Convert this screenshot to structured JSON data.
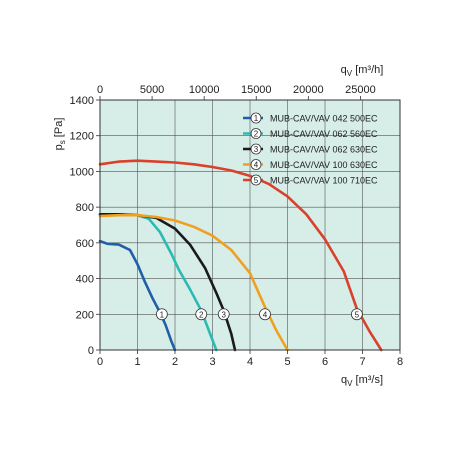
{
  "chart_data": {
    "type": "line",
    "background_color": "#d6ede8",
    "grid": true,
    "legend_position": "top-right",
    "x_primary": {
      "label": "q",
      "label_sub": "V",
      "label_unit": "[m³/s]",
      "range": [
        0,
        8
      ],
      "ticks": [
        "0",
        "1",
        "2",
        "3",
        "4",
        "5",
        "6",
        "7",
        "8"
      ]
    },
    "x_secondary": {
      "label": "q",
      "label_sub": "V",
      "label_unit": "[m³/h]",
      "range": [
        0,
        28800
      ],
      "ticks": [
        "0",
        "5000",
        "10000",
        "15000",
        "20000",
        "25000"
      ],
      "tick_values": [
        0,
        5000,
        10000,
        15000,
        20000,
        25000
      ]
    },
    "y": {
      "label": "p",
      "label_sub": "s",
      "label_unit": "[Pa]",
      "range": [
        0,
        1400
      ],
      "ticks": [
        "0",
        "200",
        "400",
        "600",
        "800",
        "1000",
        "1200",
        "1400"
      ],
      "tick_values": [
        0,
        200,
        400,
        600,
        800,
        1000,
        1200,
        1400
      ]
    },
    "series": [
      {
        "name": "MUB-CAV/VAV 042 500EC",
        "marker": "1",
        "color": "#1f5fa8",
        "marker_at": [
          1.65,
          200
        ],
        "points": [
          [
            0,
            610
          ],
          [
            0.2,
            595
          ],
          [
            0.5,
            590
          ],
          [
            0.8,
            560
          ],
          [
            1.0,
            480
          ],
          [
            1.2,
            380
          ],
          [
            1.4,
            290
          ],
          [
            1.6,
            210
          ],
          [
            1.75,
            140
          ],
          [
            1.9,
            50
          ],
          [
            2.0,
            0
          ]
        ]
      },
      {
        "name": "MUB-CAV/VAV 062 560EC",
        "marker": "2",
        "color": "#2bbbb3",
        "marker_at": [
          2.7,
          200
        ],
        "points": [
          [
            0,
            760
          ],
          [
            0.5,
            760
          ],
          [
            1.0,
            755
          ],
          [
            1.3,
            735
          ],
          [
            1.6,
            660
          ],
          [
            1.9,
            540
          ],
          [
            2.1,
            450
          ],
          [
            2.4,
            340
          ],
          [
            2.7,
            220
          ],
          [
            2.9,
            110
          ],
          [
            3.1,
            0
          ]
        ]
      },
      {
        "name": "MUB-CAV/VAV 062 630EC",
        "marker": "3",
        "color": "#1a1a1a",
        "marker_at": [
          3.3,
          200
        ],
        "points": [
          [
            0,
            760
          ],
          [
            0.5,
            760
          ],
          [
            1.0,
            755
          ],
          [
            1.5,
            740
          ],
          [
            2.0,
            680
          ],
          [
            2.4,
            590
          ],
          [
            2.8,
            460
          ],
          [
            3.1,
            320
          ],
          [
            3.3,
            220
          ],
          [
            3.5,
            90
          ],
          [
            3.6,
            0
          ]
        ]
      },
      {
        "name": "MUB-CAV/VAV 100 630EC",
        "marker": "4",
        "color": "#f0a020",
        "marker_at": [
          4.4,
          200
        ],
        "points": [
          [
            0,
            750
          ],
          [
            0.5,
            755
          ],
          [
            1.0,
            755
          ],
          [
            1.5,
            745
          ],
          [
            2.0,
            725
          ],
          [
            2.5,
            690
          ],
          [
            3.0,
            640
          ],
          [
            3.5,
            560
          ],
          [
            4.0,
            430
          ],
          [
            4.4,
            240
          ],
          [
            4.7,
            110
          ],
          [
            5.0,
            0
          ]
        ]
      },
      {
        "name": "MUB-CAV/VAV 100 710EC",
        "marker": "5",
        "color": "#d9412b",
        "marker_at": [
          6.85,
          200
        ],
        "points": [
          [
            0,
            1040
          ],
          [
            0.5,
            1055
          ],
          [
            1.0,
            1060
          ],
          [
            1.5,
            1055
          ],
          [
            2.0,
            1050
          ],
          [
            2.5,
            1040
          ],
          [
            3.0,
            1025
          ],
          [
            3.5,
            1005
          ],
          [
            4.0,
            975
          ],
          [
            4.5,
            930
          ],
          [
            5.0,
            860
          ],
          [
            5.5,
            760
          ],
          [
            6.0,
            620
          ],
          [
            6.5,
            440
          ],
          [
            6.85,
            230
          ],
          [
            7.2,
            100
          ],
          [
            7.5,
            0
          ]
        ]
      }
    ]
  }
}
